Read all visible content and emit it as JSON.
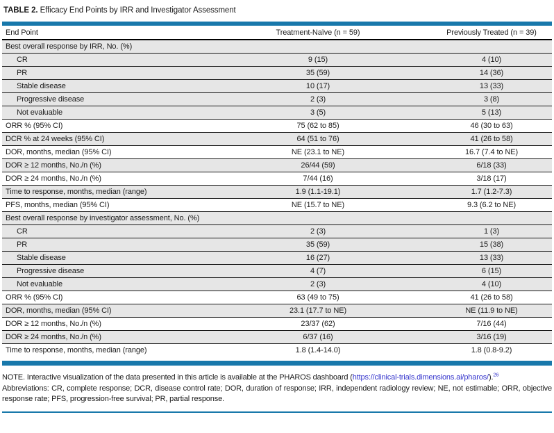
{
  "title": {
    "label": "TABLE 2.",
    "caption": "Efficacy End Points by IRR and Investigator Assessment"
  },
  "columns": [
    "End Point",
    "Treatment-Naïve (n = 59)",
    "Previously Treated (n = 39)"
  ],
  "table": {
    "rows": [
      {
        "type": "section",
        "shaded": true,
        "label": "Best overall response by IRR, No. (%)",
        "naive": "",
        "treated": ""
      },
      {
        "type": "sub",
        "shaded": true,
        "label": "CR",
        "naive": "9 (15)",
        "treated": "4 (10)"
      },
      {
        "type": "sub",
        "shaded": true,
        "label": "PR",
        "naive": "35 (59)",
        "treated": "14 (36)"
      },
      {
        "type": "sub",
        "shaded": true,
        "label": "Stable disease",
        "naive": "10 (17)",
        "treated": "13 (33)"
      },
      {
        "type": "sub",
        "shaded": true,
        "label": "Progressive disease",
        "naive": "2 (3)",
        "treated": "3 (8)"
      },
      {
        "type": "sub",
        "shaded": true,
        "label": "Not evaluable",
        "naive": "3 (5)",
        "treated": "5 (13)"
      },
      {
        "type": "main",
        "shaded": false,
        "label": "ORR % (95% CI)",
        "naive": "75 (62 to 85)",
        "treated": "46 (30 to 63)"
      },
      {
        "type": "main",
        "shaded": true,
        "label": "DCR % at 24 weeks (95% CI)",
        "naive": "64 (51 to 76)",
        "treated": "41 (26 to 58)"
      },
      {
        "type": "main",
        "shaded": false,
        "label": "DOR, months, median (95% CI)",
        "naive": "NE (23.1 to NE)",
        "treated": "16.7 (7.4 to NE)"
      },
      {
        "type": "main",
        "shaded": true,
        "label": "DOR ≥ 12 months, No./n (%)",
        "naive": "26/44 (59)",
        "treated": "6/18 (33)"
      },
      {
        "type": "main",
        "shaded": false,
        "label": "DOR ≥ 24 months, No./n (%)",
        "naive": "7/44 (16)",
        "treated": "3/18 (17)"
      },
      {
        "type": "main",
        "shaded": true,
        "label": "Time to response, months, median (range)",
        "naive": "1.9 (1.1-19.1)",
        "treated": "1.7 (1.2-7.3)"
      },
      {
        "type": "main",
        "shaded": false,
        "label": "PFS, months, median (95% CI)",
        "naive": "NE (15.7 to NE)",
        "treated": "9.3 (6.2 to NE)"
      },
      {
        "type": "section",
        "shaded": true,
        "label": "Best overall response by investigator assessment, No. (%)",
        "naive": "",
        "treated": ""
      },
      {
        "type": "sub",
        "shaded": true,
        "label": "CR",
        "naive": "2 (3)",
        "treated": "1 (3)"
      },
      {
        "type": "sub",
        "shaded": true,
        "label": "PR",
        "naive": "35 (59)",
        "treated": "15 (38)"
      },
      {
        "type": "sub",
        "shaded": true,
        "label": "Stable disease",
        "naive": "16 (27)",
        "treated": "13 (33)"
      },
      {
        "type": "sub",
        "shaded": true,
        "label": "Progressive disease",
        "naive": "4 (7)",
        "treated": "6 (15)"
      },
      {
        "type": "sub",
        "shaded": true,
        "label": "Not evaluable",
        "naive": "2 (3)",
        "treated": "4 (10)"
      },
      {
        "type": "main",
        "shaded": false,
        "label": "ORR % (95% CI)",
        "naive": "63 (49 to 75)",
        "treated": "41 (26 to 58)"
      },
      {
        "type": "main",
        "shaded": true,
        "label": "DOR, months, median (95% CI)",
        "naive": "23.1 (17.7 to NE)",
        "treated": "NE (11.9 to NE)"
      },
      {
        "type": "main",
        "shaded": false,
        "label": "DOR ≥ 12 months, No./n (%)",
        "naive": "23/37 (62)",
        "treated": "7/16 (44)"
      },
      {
        "type": "main",
        "shaded": true,
        "label": "DOR ≥ 24 months, No./n (%)",
        "naive": "6/37 (16)",
        "treated": "3/16 (19)"
      },
      {
        "type": "main",
        "shaded": false,
        "label": "Time to response, months, median (range)",
        "naive": "1.8 (1.4-14.0)",
        "treated": "1.8 (0.8-9.2)"
      }
    ]
  },
  "footer": {
    "note": {
      "prefix": "NOTE. Interactive visualization of the data presented in this article is available at the PHAROS dashboard (",
      "link": "https://clinical-trials.dimensions.ai/pharos/",
      "suffix": ").",
      "ref": "26"
    },
    "abbreviations": "Abbreviations: CR, complete response; DCR, disease control rate; DOR, duration of response; IRR, independent radiology review; NE, not estimable; ORR, objective response rate; PFS, progression-free survival; PR, partial response."
  },
  "colors": {
    "accent_blue": "#1878AB",
    "row_shade_gray": "#E6E6E6",
    "link_blue": "#3333CC",
    "rule_black": "#000000"
  }
}
